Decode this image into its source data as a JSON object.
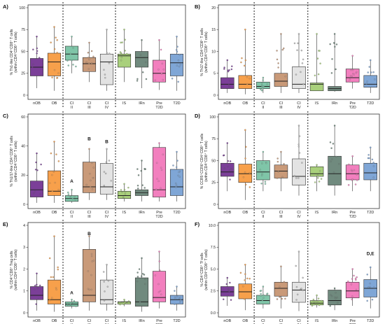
{
  "colors": {
    "nOB": "#7b3f98",
    "OB": "#f7a04b",
    "CI_II": "#7fc5a8",
    "CI_III": "#c99a79",
    "CI_IV": "#e3e3e3",
    "IS": "#a9d07c",
    "IRn": "#708a7e",
    "Pre_T2D": "#f27fbe",
    "T2D": "#7fa6d6"
  },
  "categories": [
    [
      "nOB"
    ],
    [
      "OB"
    ],
    [
      "CI",
      "II"
    ],
    [
      "CI",
      "III"
    ],
    [
      "CI",
      "IV"
    ],
    [
      "IS"
    ],
    [
      "IRn"
    ],
    [
      "Pre",
      "T2D"
    ],
    [
      "T2D"
    ]
  ],
  "chart_data": [
    {
      "panel": "A)",
      "type": "box",
      "ylabel": [
        "% Th1-like CD4⁺CD8⁺ T cells",
        "(within CD4⁺CD8⁺ T cells)"
      ],
      "ylim": [
        0,
        100
      ],
      "yticks": [
        0,
        25,
        50,
        75,
        100
      ],
      "boxes": [
        {
          "q1": 22,
          "med": 32,
          "q3": 42,
          "lo": 8,
          "hi": 67
        },
        {
          "q1": 22,
          "med": 38,
          "q3": 48,
          "lo": 5,
          "hi": 78
        },
        {
          "q1": 40,
          "med": 47,
          "q3": 56,
          "lo": 25,
          "hi": 67
        },
        {
          "q1": 27,
          "med": 36,
          "q3": 43,
          "lo": 15,
          "hi": 60
        },
        {
          "q1": 12,
          "med": 38,
          "q3": 47,
          "lo": 5,
          "hi": 75
        },
        {
          "q1": 32,
          "med": 45,
          "q3": 47,
          "lo": 15,
          "hi": 75
        },
        {
          "q1": 32,
          "med": 43,
          "q3": 50,
          "lo": 8,
          "hi": 63
        },
        {
          "q1": 15,
          "med": 25,
          "q3": 40,
          "lo": 6,
          "hi": 63
        },
        {
          "q1": 22,
          "med": 37,
          "q3": 47,
          "lo": 5,
          "hi": 67
        }
      ],
      "letters": []
    },
    {
      "panel": "B)",
      "type": "box",
      "ylabel": [
        "% Th17-like CD4⁺CD8⁺ T cells",
        "(within CD4⁺CD8⁺ T cells)"
      ],
      "ylim": [
        0,
        20
      ],
      "yticks": [
        0,
        5,
        10,
        15,
        20
      ],
      "boxes": [
        {
          "q1": 1.5,
          "med": 2.5,
          "q3": 4,
          "lo": 0.5,
          "hi": 8
        },
        {
          "q1": 1.5,
          "med": 2.5,
          "q3": 4.5,
          "lo": 0.2,
          "hi": 15
        },
        {
          "q1": 1.5,
          "med": 2,
          "q3": 3,
          "lo": 0.5,
          "hi": 4
        },
        {
          "q1": 2,
          "med": 3.2,
          "q3": 5,
          "lo": 0.5,
          "hi": 14
        },
        {
          "q1": 1.5,
          "med": 2.5,
          "q3": 6.5,
          "lo": 0.5,
          "hi": 14
        },
        {
          "q1": 1,
          "med": 2.5,
          "q3": 2.8,
          "lo": 1,
          "hi": 14
        },
        {
          "q1": 1,
          "med": 1.5,
          "q3": 2,
          "lo": 0.8,
          "hi": 14
        },
        {
          "q1": 3,
          "med": 4,
          "q3": 6,
          "lo": 1.5,
          "hi": 9
        },
        {
          "q1": 1.8,
          "med": 2.5,
          "q3": 4.5,
          "lo": 0.5,
          "hi": 8
        }
      ],
      "letters": []
    },
    {
      "panel": "C)",
      "type": "box",
      "ylabel": [
        "% Th1/17-like CD4⁺CD8⁺ T cells",
        "(within CD4⁺CD8⁺ T cells)"
      ],
      "ylim": [
        0,
        60
      ],
      "yticks": [
        0,
        20,
        40,
        60
      ],
      "boxes": [
        {
          "q1": 5,
          "med": 10,
          "q3": 16,
          "lo": 1,
          "hi": 35
        },
        {
          "q1": 6,
          "med": 9,
          "q3": 23,
          "lo": 1,
          "hi": 43
        },
        {
          "q1": 2,
          "med": 4,
          "q3": 6,
          "lo": 1,
          "hi": 10
        },
        {
          "q1": 8,
          "med": 12,
          "q3": 29,
          "lo": 3,
          "hi": 38
        },
        {
          "q1": 7,
          "med": 12,
          "q3": 28,
          "lo": 3,
          "hi": 38
        },
        {
          "q1": 4,
          "med": 6,
          "q3": 9,
          "lo": 2,
          "hi": 14
        },
        {
          "q1": 6,
          "med": 8,
          "q3": 10,
          "lo": 2,
          "hi": 30
        },
        {
          "q1": 5,
          "med": 10,
          "q3": 39,
          "lo": 2,
          "hi": 42
        },
        {
          "q1": 6,
          "med": 12,
          "q3": 24,
          "lo": 2,
          "hi": 36
        }
      ],
      "letters": [
        {
          "cat": 2,
          "text": "A",
          "y": 15
        },
        {
          "cat": 3,
          "text": "B",
          "y": 44
        },
        {
          "cat": 4,
          "text": "B",
          "y": 42
        }
      ]
    },
    {
      "panel": "D)",
      "type": "box",
      "ylabel": [
        "% CCR5⁺CCR6⁺CD4⁺CD8⁺ T cells",
        "(within CD4⁺CD8⁺ T cells)"
      ],
      "ylim": [
        0,
        100
      ],
      "yticks": [
        0,
        25,
        50,
        75,
        100
      ],
      "boxes": [
        {
          "q1": 32,
          "med": 37,
          "q3": 47,
          "lo": 15,
          "hi": 70
        },
        {
          "q1": 25,
          "med": 35,
          "q3": 46,
          "lo": 5,
          "hi": 85
        },
        {
          "q1": 28,
          "med": 37,
          "q3": 50,
          "lo": 15,
          "hi": 60
        },
        {
          "q1": 30,
          "med": 38,
          "q3": 45,
          "lo": 15,
          "hi": 60
        },
        {
          "q1": 22,
          "med": 32,
          "q3": 52,
          "lo": 10,
          "hi": 90
        },
        {
          "q1": 32,
          "med": 35,
          "q3": 43,
          "lo": 15,
          "hi": 45
        },
        {
          "q1": 22,
          "med": 35,
          "q3": 55,
          "lo": 10,
          "hi": 90
        },
        {
          "q1": 28,
          "med": 35,
          "q3": 45,
          "lo": 15,
          "hi": 55
        },
        {
          "q1": 28,
          "med": 36,
          "q3": 47,
          "lo": 15,
          "hi": 65
        }
      ],
      "letters": []
    },
    {
      "panel": "E)",
      "type": "box",
      "ylabel": [
        "% CD4⁺CD8⁺ Treg cells",
        "(within CD4⁺CD8⁺ T cells)"
      ],
      "ylim": [
        0,
        4
      ],
      "yticks": [
        0,
        1,
        2,
        3,
        4
      ],
      "boxes": [
        {
          "q1": 0.6,
          "med": 0.8,
          "q3": 1.2,
          "lo": 0.1,
          "hi": 1.8
        },
        {
          "q1": 0.4,
          "med": 0.6,
          "q3": 1.5,
          "lo": 0.05,
          "hi": 3.5
        },
        {
          "q1": 0.3,
          "med": 0.4,
          "q3": 0.5,
          "lo": 0.2,
          "hi": 0.6
        },
        {
          "q1": 0.5,
          "med": 0.8,
          "q3": 2.9,
          "lo": 0.1,
          "hi": 3.5
        },
        {
          "q1": 0.4,
          "med": 0.6,
          "q3": 1.5,
          "lo": 0.1,
          "hi": 2.2
        },
        {
          "q1": 0.4,
          "med": 0.5,
          "q3": 0.5,
          "lo": 0.3,
          "hi": 0.6
        },
        {
          "q1": 0.3,
          "med": 0.5,
          "q3": 1.6,
          "lo": 0.05,
          "hi": 2.5
        },
        {
          "q1": 0.5,
          "med": 0.7,
          "q3": 1.9,
          "lo": 0.2,
          "hi": 2.8
        },
        {
          "q1": 0.4,
          "med": 0.6,
          "q3": 0.8,
          "lo": 0.1,
          "hi": 1.2
        }
      ],
      "letters": [
        {
          "cat": 2,
          "text": "A",
          "y": 0.85
        },
        {
          "cat": 3,
          "text": "B",
          "y": 3.55
        }
      ]
    },
    {
      "panel": "F)",
      "type": "box",
      "ylabel": [
        "% CD4⁺CD8⁺ Tf cells",
        "(within CD4⁺CD8⁺ T cells)"
      ],
      "ylim": [
        0,
        10
      ],
      "yticks": [
        0.0,
        2.5,
        5.0,
        7.5,
        10.0
      ],
      "ytick_decimals": 1,
      "boxes": [
        {
          "q1": 1.9,
          "med": 2.4,
          "q3": 3.0,
          "lo": 0.8,
          "hi": 4.0
        },
        {
          "q1": 1.6,
          "med": 2.4,
          "q3": 3.3,
          "lo": 0.3,
          "hi": 5.5
        },
        {
          "q1": 1.0,
          "med": 1.4,
          "q3": 2.0,
          "lo": 0.5,
          "hi": 3.0
        },
        {
          "q1": 1.9,
          "med": 2.8,
          "q3": 3.5,
          "lo": 0.5,
          "hi": 5.3
        },
        {
          "q1": 1.2,
          "med": 2.6,
          "q3": 3.5,
          "lo": 0.2,
          "hi": 7.0
        },
        {
          "q1": 0.9,
          "med": 1.1,
          "q3": 1.4,
          "lo": 0.6,
          "hi": 2.0
        },
        {
          "q1": 0.9,
          "med": 1.4,
          "q3": 2.6,
          "lo": 0.3,
          "hi": 2.8
        },
        {
          "q1": 1.7,
          "med": 2.5,
          "q3": 3.5,
          "lo": 0.8,
          "hi": 5.0
        },
        {
          "q1": 1.8,
          "med": 2.8,
          "q3": 3.8,
          "lo": 0.5,
          "hi": 5.2
        }
      ],
      "letters": [
        {
          "cat": 8,
          "text": "D,E",
          "y": 6.6
        }
      ]
    }
  ]
}
